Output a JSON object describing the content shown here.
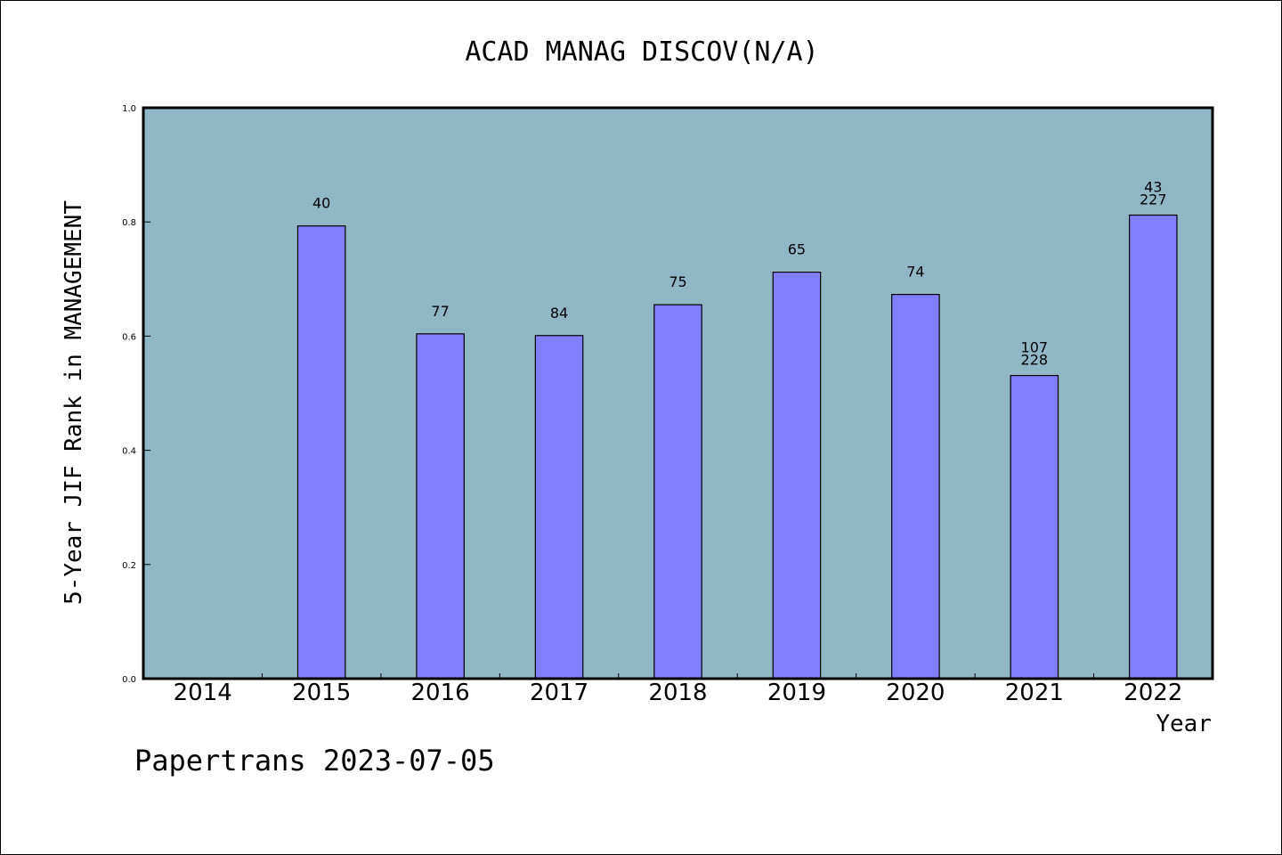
{
  "chart_data": {
    "type": "bar",
    "title": "ACAD MANAG DISCOV(N/A)",
    "xlabel": "Year",
    "ylabel": "5-Year JIF Rank in MANAGEMENT",
    "ylim": [
      0,
      1.0
    ],
    "yticks": [
      "0.0",
      "0.2",
      "0.4",
      "0.6",
      "0.8",
      "1.0"
    ],
    "categories": [
      "2014",
      "2015",
      "2016",
      "2017",
      "2018",
      "2019",
      "2020",
      "2021",
      "2022"
    ],
    "values": [
      null,
      0.793,
      0.604,
      0.601,
      0.655,
      0.712,
      0.673,
      0.531,
      0.812
    ],
    "bar_labels": [
      [],
      [
        "40"
      ],
      [
        "77"
      ],
      [
        "84"
      ],
      [
        "75"
      ],
      [
        "65"
      ],
      [
        "74"
      ],
      [
        "107",
        "228"
      ],
      [
        "43",
        "227"
      ]
    ],
    "grid": false,
    "colors": {
      "plot_background": "#8fb7c6",
      "bar_fill": "#8080ff",
      "bar_stroke": "#000000"
    }
  },
  "footer": {
    "watermark": "Papertrans 2023-07-05"
  }
}
